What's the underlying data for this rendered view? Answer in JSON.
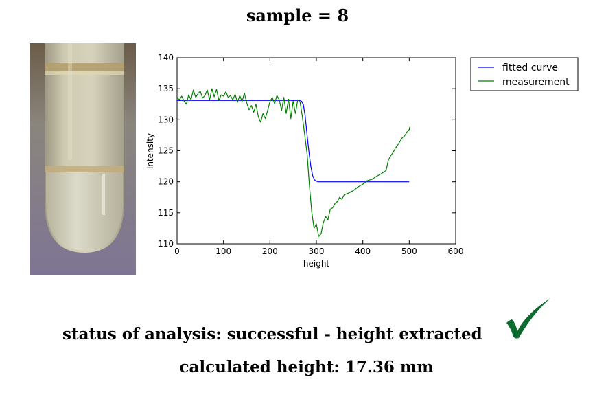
{
  "header": {
    "title": "sample = 8"
  },
  "status": {
    "text": "status of analysis: successful - height extracted",
    "icon": "checkmark-icon",
    "icon_color": "#0b6b2e"
  },
  "result": {
    "text": "calculated height: 17.36 mm"
  },
  "photo": {
    "description_icon": "test-tube-photo",
    "colors": {
      "background": "#8a8299",
      "liquid": "#c8c3a6",
      "foam": "#b9a376"
    }
  },
  "chart_data": {
    "type": "line",
    "xlabel": "height",
    "ylabel": "intensity",
    "xlim": [
      0,
      600
    ],
    "ylim": [
      110,
      140
    ],
    "x_ticks": [
      "0",
      "100",
      "200",
      "300",
      "400",
      "500",
      "600"
    ],
    "y_ticks": [
      "110",
      "115",
      "120",
      "125",
      "130",
      "135",
      "140"
    ],
    "grid": false,
    "legend": "outside-top-right",
    "series": [
      {
        "name": "fitted curve",
        "color": "#0000ff",
        "x": [
          0,
          250,
          262,
          268,
          272,
          276,
          280,
          284,
          288,
          292,
          296,
          300,
          304,
          310,
          320,
          400,
          500
        ],
        "y": [
          133.1,
          133.1,
          133.1,
          133.0,
          132.4,
          130.5,
          127.5,
          124.8,
          122.5,
          121.0,
          120.3,
          120.1,
          120.0,
          120.0,
          120.0,
          120.0,
          120.0
        ]
      },
      {
        "name": "measurement",
        "color": "#007f00",
        "x": [
          0,
          5,
          10,
          15,
          20,
          25,
          30,
          35,
          40,
          45,
          50,
          55,
          60,
          65,
          70,
          75,
          80,
          85,
          90,
          95,
          100,
          105,
          110,
          115,
          120,
          125,
          130,
          135,
          140,
          145,
          150,
          155,
          160,
          165,
          170,
          175,
          180,
          185,
          190,
          195,
          200,
          205,
          210,
          215,
          220,
          225,
          230,
          235,
          240,
          245,
          250,
          255,
          260,
          265,
          270,
          275,
          280,
          285,
          290,
          295,
          300,
          305,
          310,
          315,
          320,
          325,
          330,
          335,
          340,
          345,
          350,
          355,
          360,
          370,
          380,
          390,
          400,
          410,
          420,
          430,
          440,
          450,
          455,
          460,
          465,
          470,
          475,
          480,
          485,
          490,
          495,
          500,
          502
        ],
        "y": [
          133.6,
          133.2,
          133.8,
          133.0,
          132.5,
          134.0,
          133.2,
          134.8,
          133.6,
          134.2,
          134.6,
          133.5,
          133.9,
          134.8,
          133.2,
          135.0,
          133.7,
          134.9,
          133.1,
          134.0,
          133.8,
          134.5,
          133.6,
          133.9,
          133.2,
          134.1,
          132.8,
          133.9,
          132.9,
          134.3,
          132.7,
          131.6,
          132.3,
          131.2,
          132.5,
          130.5,
          129.6,
          131.0,
          130.2,
          131.5,
          132.9,
          133.6,
          132.6,
          133.9,
          133.2,
          131.5,
          133.6,
          131.0,
          133.3,
          130.2,
          133.0,
          131.0,
          133.2,
          132.8,
          130.4,
          127.5,
          124.5,
          119.5,
          115.2,
          112.5,
          113.2,
          111.2,
          111.6,
          113.4,
          114.4,
          113.9,
          115.6,
          115.8,
          116.5,
          116.8,
          117.5,
          117.2,
          117.9,
          118.2,
          118.6,
          119.2,
          119.6,
          120.2,
          120.4,
          120.9,
          121.3,
          121.8,
          123.5,
          124.2,
          124.7,
          125.4,
          125.9,
          126.5,
          127.1,
          127.4,
          128.0,
          128.4,
          129.0
        ]
      }
    ]
  }
}
